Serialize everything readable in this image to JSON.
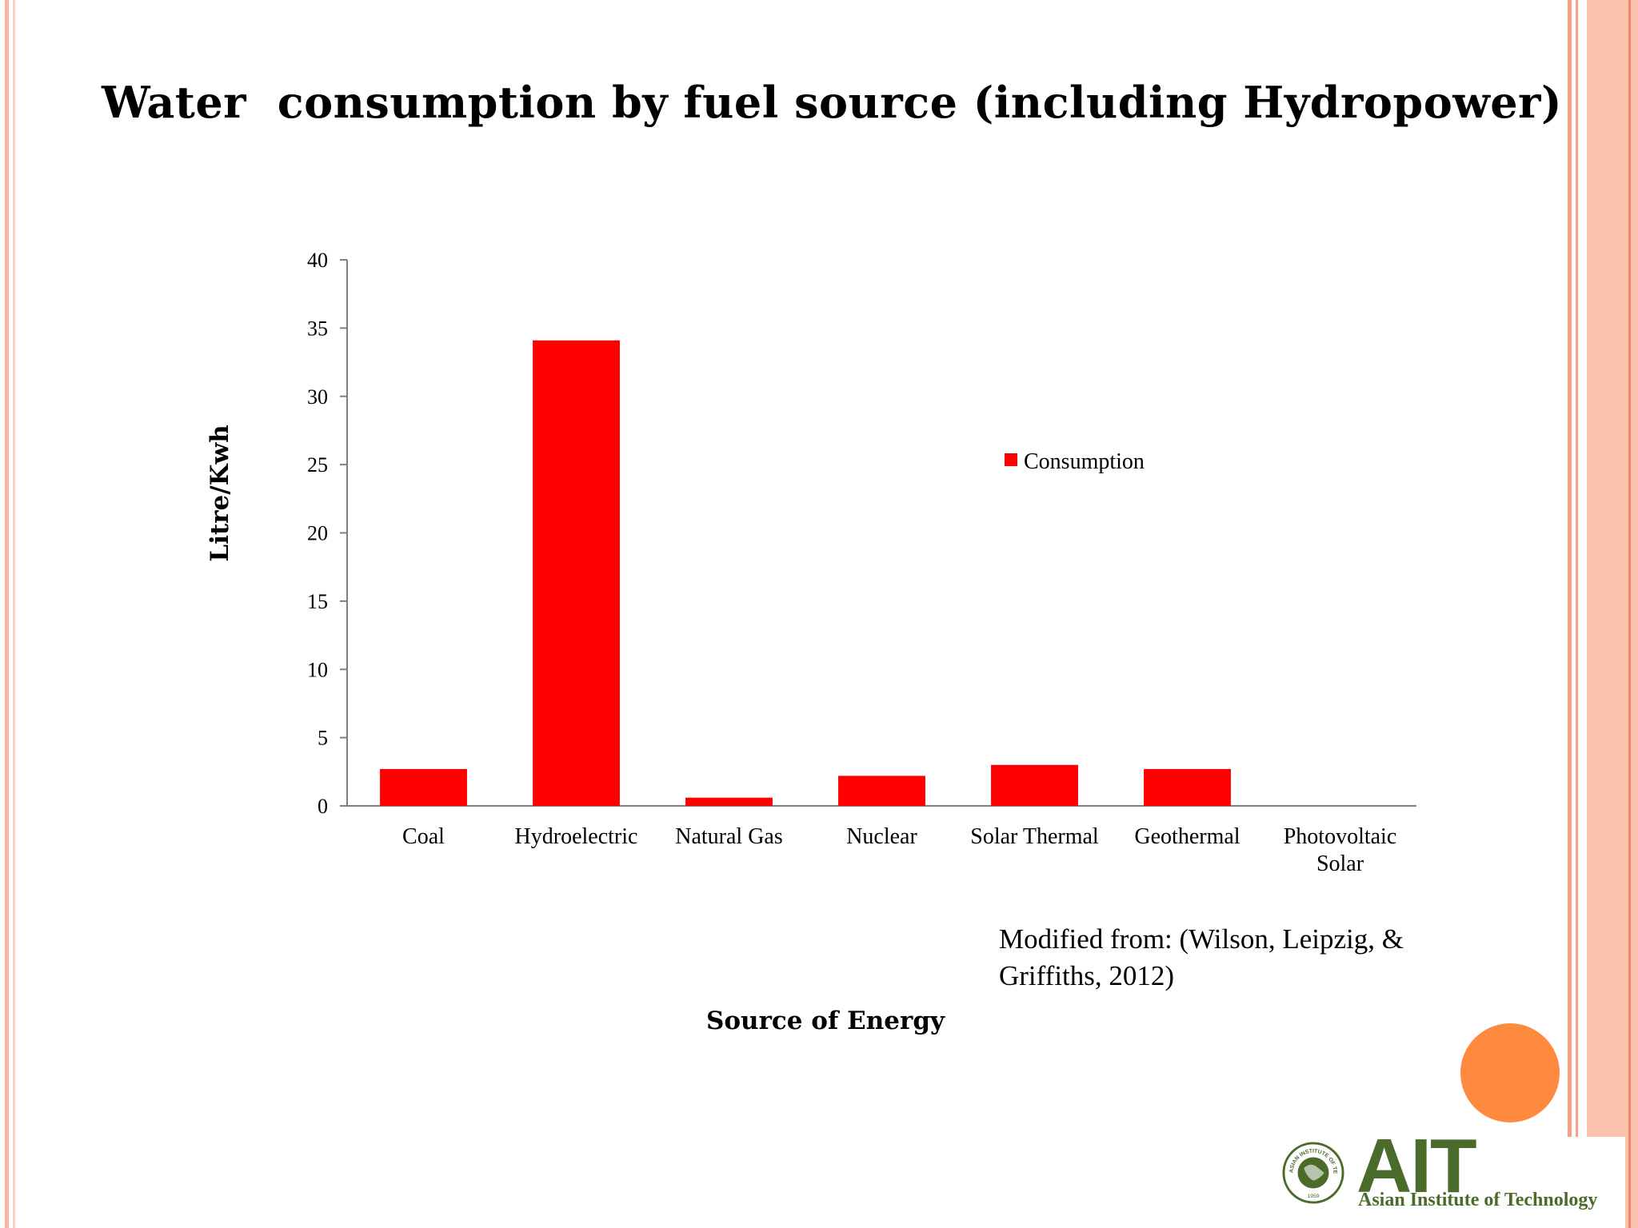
{
  "slide": {
    "title": "Water  consumption by fuel source (including Hydropower)",
    "citation": "Modified from: (Wilson, Leipzig, & Griffiths, 2012)"
  },
  "logo": {
    "wordmark": "AIT",
    "name": "Asian Institute of Technology",
    "seal_text": "ASIAN INSTITUTE OF TECHNOLOGY",
    "seal_year": "1959"
  },
  "colors": {
    "bar": "#ff0000",
    "accent_circle": "#fd8a3f",
    "border": "#fbc4ad",
    "logo_green": "#4a6b2a"
  },
  "chart_data": {
    "type": "bar",
    "categories": [
      "Coal",
      "Hydroelectric",
      "Natural Gas",
      "Nuclear",
      "Solar Thermal",
      "Geothermal",
      "Photovoltaic Solar"
    ],
    "category_lines": [
      [
        "Coal"
      ],
      [
        "Hydroelectric"
      ],
      [
        "Natural Gas"
      ],
      [
        "Nuclear"
      ],
      [
        "Solar Thermal"
      ],
      [
        "Geothermal"
      ],
      [
        "Photovoltaic",
        "Solar"
      ]
    ],
    "series": [
      {
        "name": "Consumption",
        "values": [
          2.7,
          34.1,
          0.6,
          2.2,
          3.0,
          2.7,
          0.0
        ]
      }
    ],
    "xlabel": "Source of Energy",
    "ylabel": "Litre/Kwh",
    "ylim": [
      0,
      40
    ],
    "yticks": [
      0,
      5,
      10,
      15,
      20,
      25,
      30,
      35,
      40
    ],
    "grid": false,
    "legend": "right"
  }
}
